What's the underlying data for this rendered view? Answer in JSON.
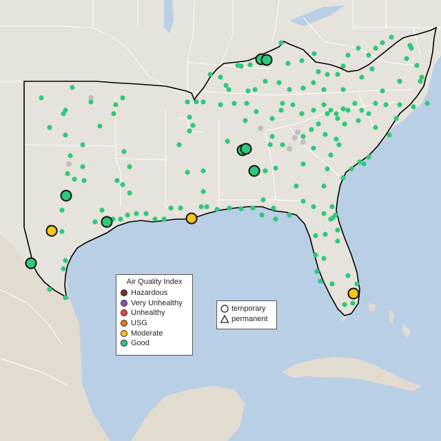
{
  "map": {
    "title": "",
    "colors": {
      "water": "#b9cfe6",
      "land": "#e6e2dc",
      "land_shade": "#ddd6cc",
      "state_lines": "#ffffff",
      "region_outline": "#000000",
      "terrain": "#cfc6b8"
    }
  },
  "legend": {
    "title": "Air Quality Index",
    "items": [
      {
        "label": "Hazardous",
        "color": "#7e2f2f"
      },
      {
        "label": "Very Unhealthy",
        "color": "#8d4fb3"
      },
      {
        "label": "Unhealthy",
        "color": "#e2473b"
      },
      {
        "label": "USG",
        "color": "#e07a22"
      },
      {
        "label": "Moderate",
        "color": "#f5c519"
      },
      {
        "label": "Good",
        "color": "#2ec97a"
      }
    ]
  },
  "monitor_types": {
    "temporary_label": "temporary",
    "permanent_label": "permanent"
  },
  "markers": {
    "good_color": "#2ec97a",
    "moderate_color": "#f5c519",
    "inactive_color": "#bfbfbf"
  }
}
